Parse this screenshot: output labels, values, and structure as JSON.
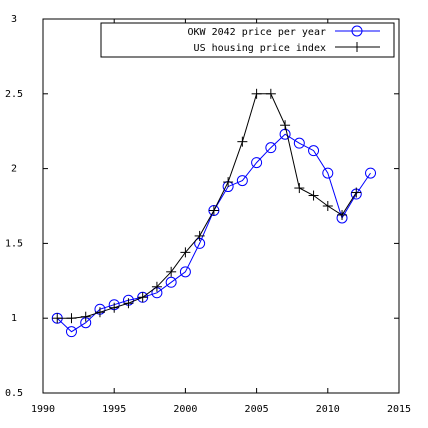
{
  "chart_data": {
    "type": "line",
    "title": "",
    "xlabel": "",
    "ylabel": "",
    "xlim": [
      1990,
      2015
    ],
    "ylim": [
      0.5,
      3
    ],
    "xticks": [
      1990,
      1995,
      2000,
      2005,
      2010,
      2015
    ],
    "yticks": [
      0.5,
      1,
      1.5,
      2,
      2.5,
      3
    ],
    "ytick_labels": [
      "0.5",
      "1",
      "1.5",
      "2",
      "2.5",
      "3"
    ],
    "grid": false,
    "legend_position": "top-right",
    "series": [
      {
        "name": "OKW 2042 price per year",
        "color": "#0000ff",
        "marker": "circle",
        "x": [
          1991,
          1992,
          1993,
          1994,
          1995,
          1996,
          1997,
          1998,
          1999,
          2000,
          2001,
          2002,
          2003,
          2004,
          2005,
          2006,
          2007,
          2008,
          2009,
          2010,
          2011,
          2012,
          2013
        ],
        "values": [
          1.0,
          0.91,
          0.97,
          1.06,
          1.09,
          1.12,
          1.14,
          1.17,
          1.24,
          1.31,
          1.5,
          1.72,
          1.88,
          1.92,
          2.04,
          2.14,
          2.23,
          2.17,
          2.12,
          1.97,
          1.67,
          1.83,
          1.97
        ]
      },
      {
        "name": "US housing price index",
        "color": "#000000",
        "marker": "plus",
        "x": [
          1991,
          1992,
          1993,
          1994,
          1995,
          1996,
          1997,
          1998,
          1999,
          2000,
          2001,
          2002,
          2003,
          2004,
          2005,
          2006,
          2007,
          2008,
          2009,
          2010,
          2011,
          2012
        ],
        "values": [
          1.0,
          1.0,
          1.01,
          1.04,
          1.07,
          1.1,
          1.14,
          1.21,
          1.31,
          1.44,
          1.55,
          1.72,
          1.91,
          2.18,
          2.5,
          2.5,
          2.29,
          1.87,
          1.82,
          1.75,
          1.69,
          1.84
        ]
      }
    ]
  }
}
